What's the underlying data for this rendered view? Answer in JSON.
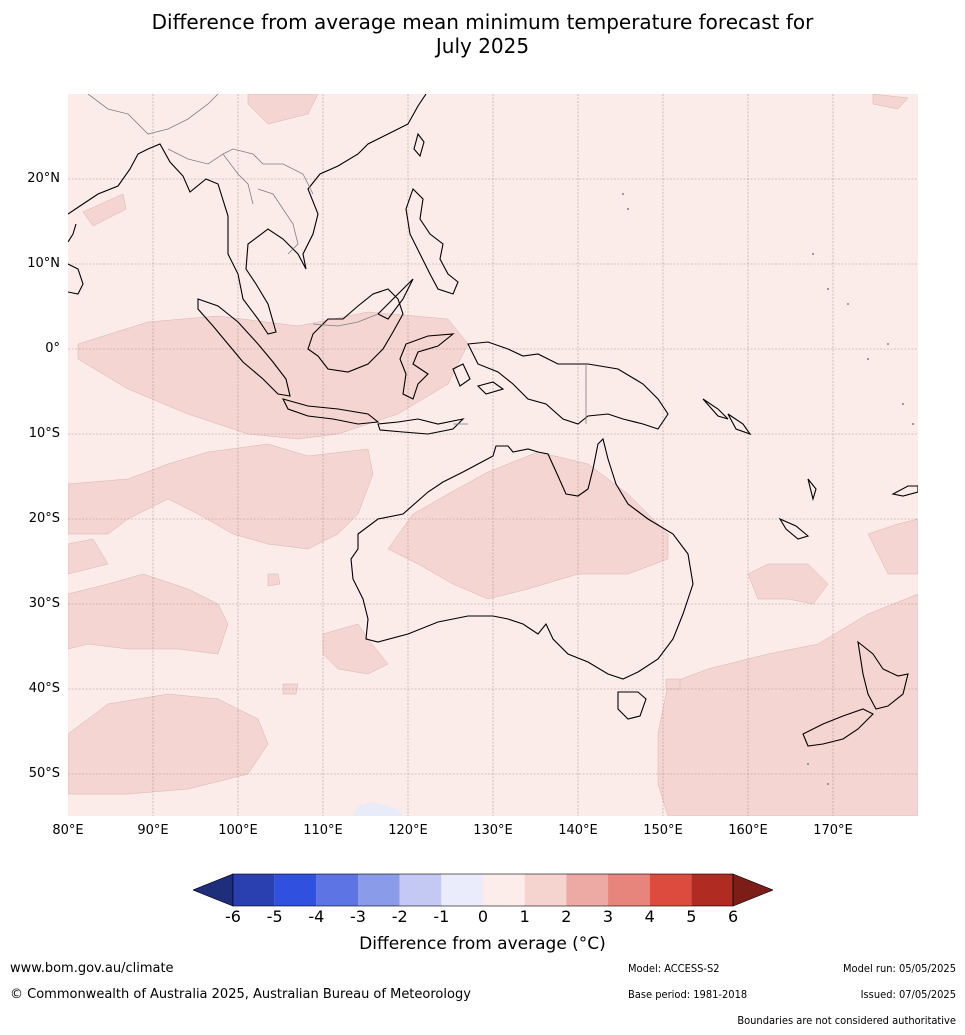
{
  "title_line1": "Difference from average mean minimum temperature forecast for",
  "title_line2": "July 2025",
  "map": {
    "lon_range": [
      80,
      180
    ],
    "lat_range": [
      -55,
      30
    ],
    "lat_labels": [
      "20°N",
      "10°N",
      "0°",
      "10°S",
      "20°S",
      "30°S",
      "40°S",
      "50°S"
    ],
    "lon_labels": [
      "80°E",
      "90°E",
      "100°E",
      "110°E",
      "120°E",
      "130°E",
      "140°E",
      "150°E",
      "160°E",
      "170°E"
    ],
    "colors": {
      "zero_to_one": "#fbebe9",
      "one_to_two": "#f4d5d2",
      "minus_one_to_zero": "#e8ecf8",
      "land_outline": "#000000",
      "border": "#808080",
      "grid": "#a08e8c"
    }
  },
  "colorbar": {
    "ticks": [
      "-6",
      "-5",
      "-4",
      "-3",
      "-2",
      "-1",
      "0",
      "1",
      "2",
      "3",
      "4",
      "5",
      "6"
    ],
    "colors": [
      "#1f2e7a",
      "#2a3fb0",
      "#3050e0",
      "#5c74e4",
      "#8a9bea",
      "#c3c9f3",
      "#eaecfb",
      "#fcecea",
      "#f5d3cf",
      "#edaaa4",
      "#e7847c",
      "#dc4b3e",
      "#b02b22",
      "#7d1d18"
    ],
    "label": "Difference from average ($^\\circ$C)",
    "label_display": "Difference from average (°C)"
  },
  "footer": {
    "website": "www.bom.gov.au/climate",
    "copyright": "© Commonwealth of Australia 2025, Australian Bureau of Meteorology",
    "model": "Model: ACCESS-S2",
    "base_period": "Base period: 1981-2018",
    "model_run": "Model run: 05/05/2025",
    "issued": "Issued: 07/05/2025",
    "disclaimer": "Boundaries are not considered authoritative"
  }
}
